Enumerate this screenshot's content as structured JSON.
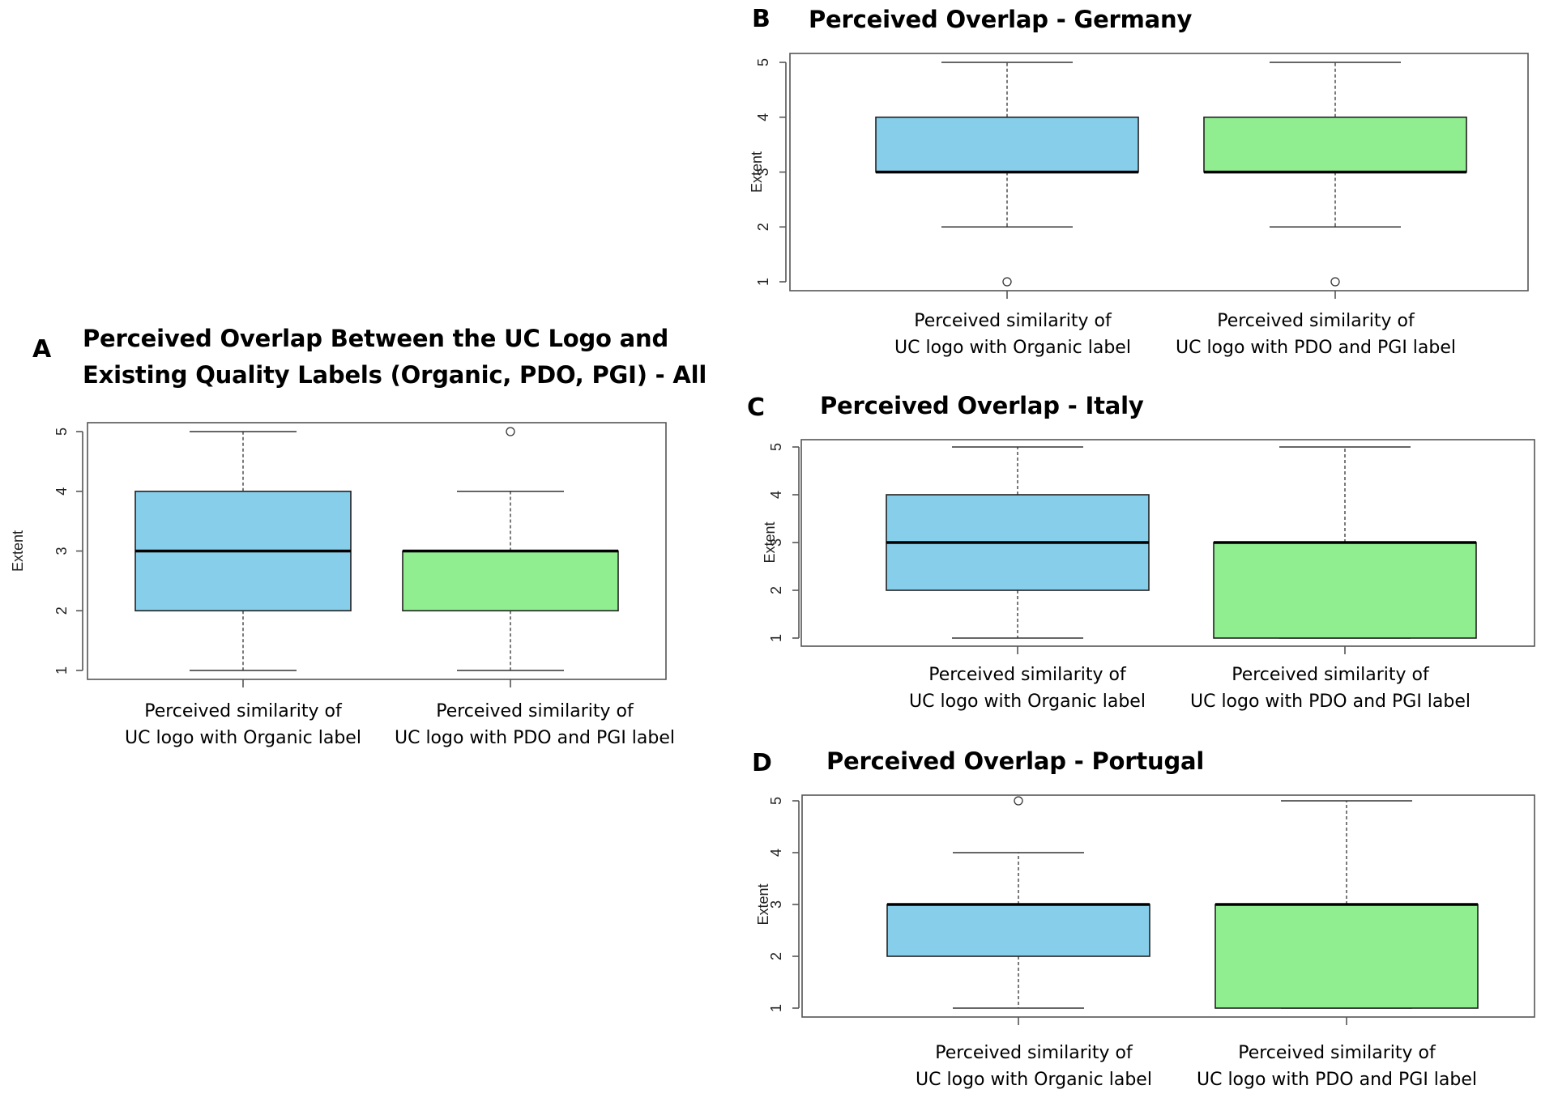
{
  "colors": {
    "organic": "#87CEEB",
    "pdo_pgi": "#90EE90",
    "frame": "#555555",
    "median": "#000000"
  },
  "chart_data": [
    {
      "id": "A",
      "letter": "A",
      "type": "box",
      "title_lines": [
        "Perceived Overlap Between the UC Logo and",
        "Existing Quality Labels (Organic, PDO, PGI) - All"
      ],
      "ylabel": "Extent",
      "ylim": [
        1,
        5
      ],
      "yticks": [
        "1",
        "2",
        "3",
        "4",
        "5"
      ],
      "categories": [
        {
          "line1": "Perceived similarity of",
          "line2": "UC logo with Organic label"
        },
        {
          "line1": "Perceived similarity of",
          "line2": "UC logo with PDO and PGI label"
        }
      ],
      "boxes": [
        {
          "whisker_low": 1,
          "q1": 2,
          "median": 3,
          "q3": 4,
          "whisker_high": 5,
          "outliers": [],
          "color": "organic"
        },
        {
          "whisker_low": 1,
          "q1": 2,
          "median": 3,
          "q3": 3,
          "whisker_high": 4,
          "outliers": [
            5
          ],
          "color": "pdo_pgi"
        }
      ]
    },
    {
      "id": "B",
      "letter": "B",
      "type": "box",
      "title_lines": [
        "Perceived Overlap - Germany"
      ],
      "ylabel": "Extent",
      "ylim": [
        1,
        5
      ],
      "yticks": [
        "1",
        "2",
        "3",
        "4",
        "5"
      ],
      "categories": [
        {
          "line1": "Perceived similarity of",
          "line2": "UC logo with Organic label"
        },
        {
          "line1": "Perceived similarity of",
          "line2": "UC logo with PDO and PGI label"
        }
      ],
      "boxes": [
        {
          "whisker_low": 2,
          "q1": 3,
          "median": 3,
          "q3": 4,
          "whisker_high": 5,
          "outliers": [
            1
          ],
          "color": "organic"
        },
        {
          "whisker_low": 2,
          "q1": 3,
          "median": 3,
          "q3": 4,
          "whisker_high": 5,
          "outliers": [
            1
          ],
          "color": "pdo_pgi"
        }
      ]
    },
    {
      "id": "C",
      "letter": "C",
      "type": "box",
      "title_lines": [
        "Perceived Overlap - Italy"
      ],
      "ylabel": "Extent",
      "ylim": [
        1,
        5
      ],
      "yticks": [
        "1",
        "2",
        "3",
        "4",
        "5"
      ],
      "categories": [
        {
          "line1": "Perceived similarity of",
          "line2": "UC logo with Organic label"
        },
        {
          "line1": "Perceived similarity of",
          "line2": "UC logo with PDO and PGI label"
        }
      ],
      "boxes": [
        {
          "whisker_low": 1,
          "q1": 2,
          "median": 3,
          "q3": 4,
          "whisker_high": 5,
          "outliers": [],
          "color": "organic"
        },
        {
          "whisker_low": 1,
          "q1": 1,
          "median": 3,
          "q3": 3,
          "whisker_high": 5,
          "outliers": [],
          "color": "pdo_pgi"
        }
      ]
    },
    {
      "id": "D",
      "letter": "D",
      "type": "box",
      "title_lines": [
        "Perceived Overlap - Portugal"
      ],
      "ylabel": "Extent",
      "ylim": [
        1,
        5
      ],
      "yticks": [
        "1",
        "2",
        "3",
        "4",
        "5"
      ],
      "categories": [
        {
          "line1": "Perceived similarity of",
          "line2": "UC logo with Organic label"
        },
        {
          "line1": "Perceived similarity of",
          "line2": "UC logo with PDO and PGI label"
        }
      ],
      "boxes": [
        {
          "whisker_low": 1,
          "q1": 2,
          "median": 3,
          "q3": 3,
          "whisker_high": 4,
          "outliers": [
            5
          ],
          "color": "organic"
        },
        {
          "whisker_low": 1,
          "q1": 1,
          "median": 3,
          "q3": 3,
          "whisker_high": 5,
          "outliers": [],
          "color": "pdo_pgi"
        }
      ]
    }
  ]
}
